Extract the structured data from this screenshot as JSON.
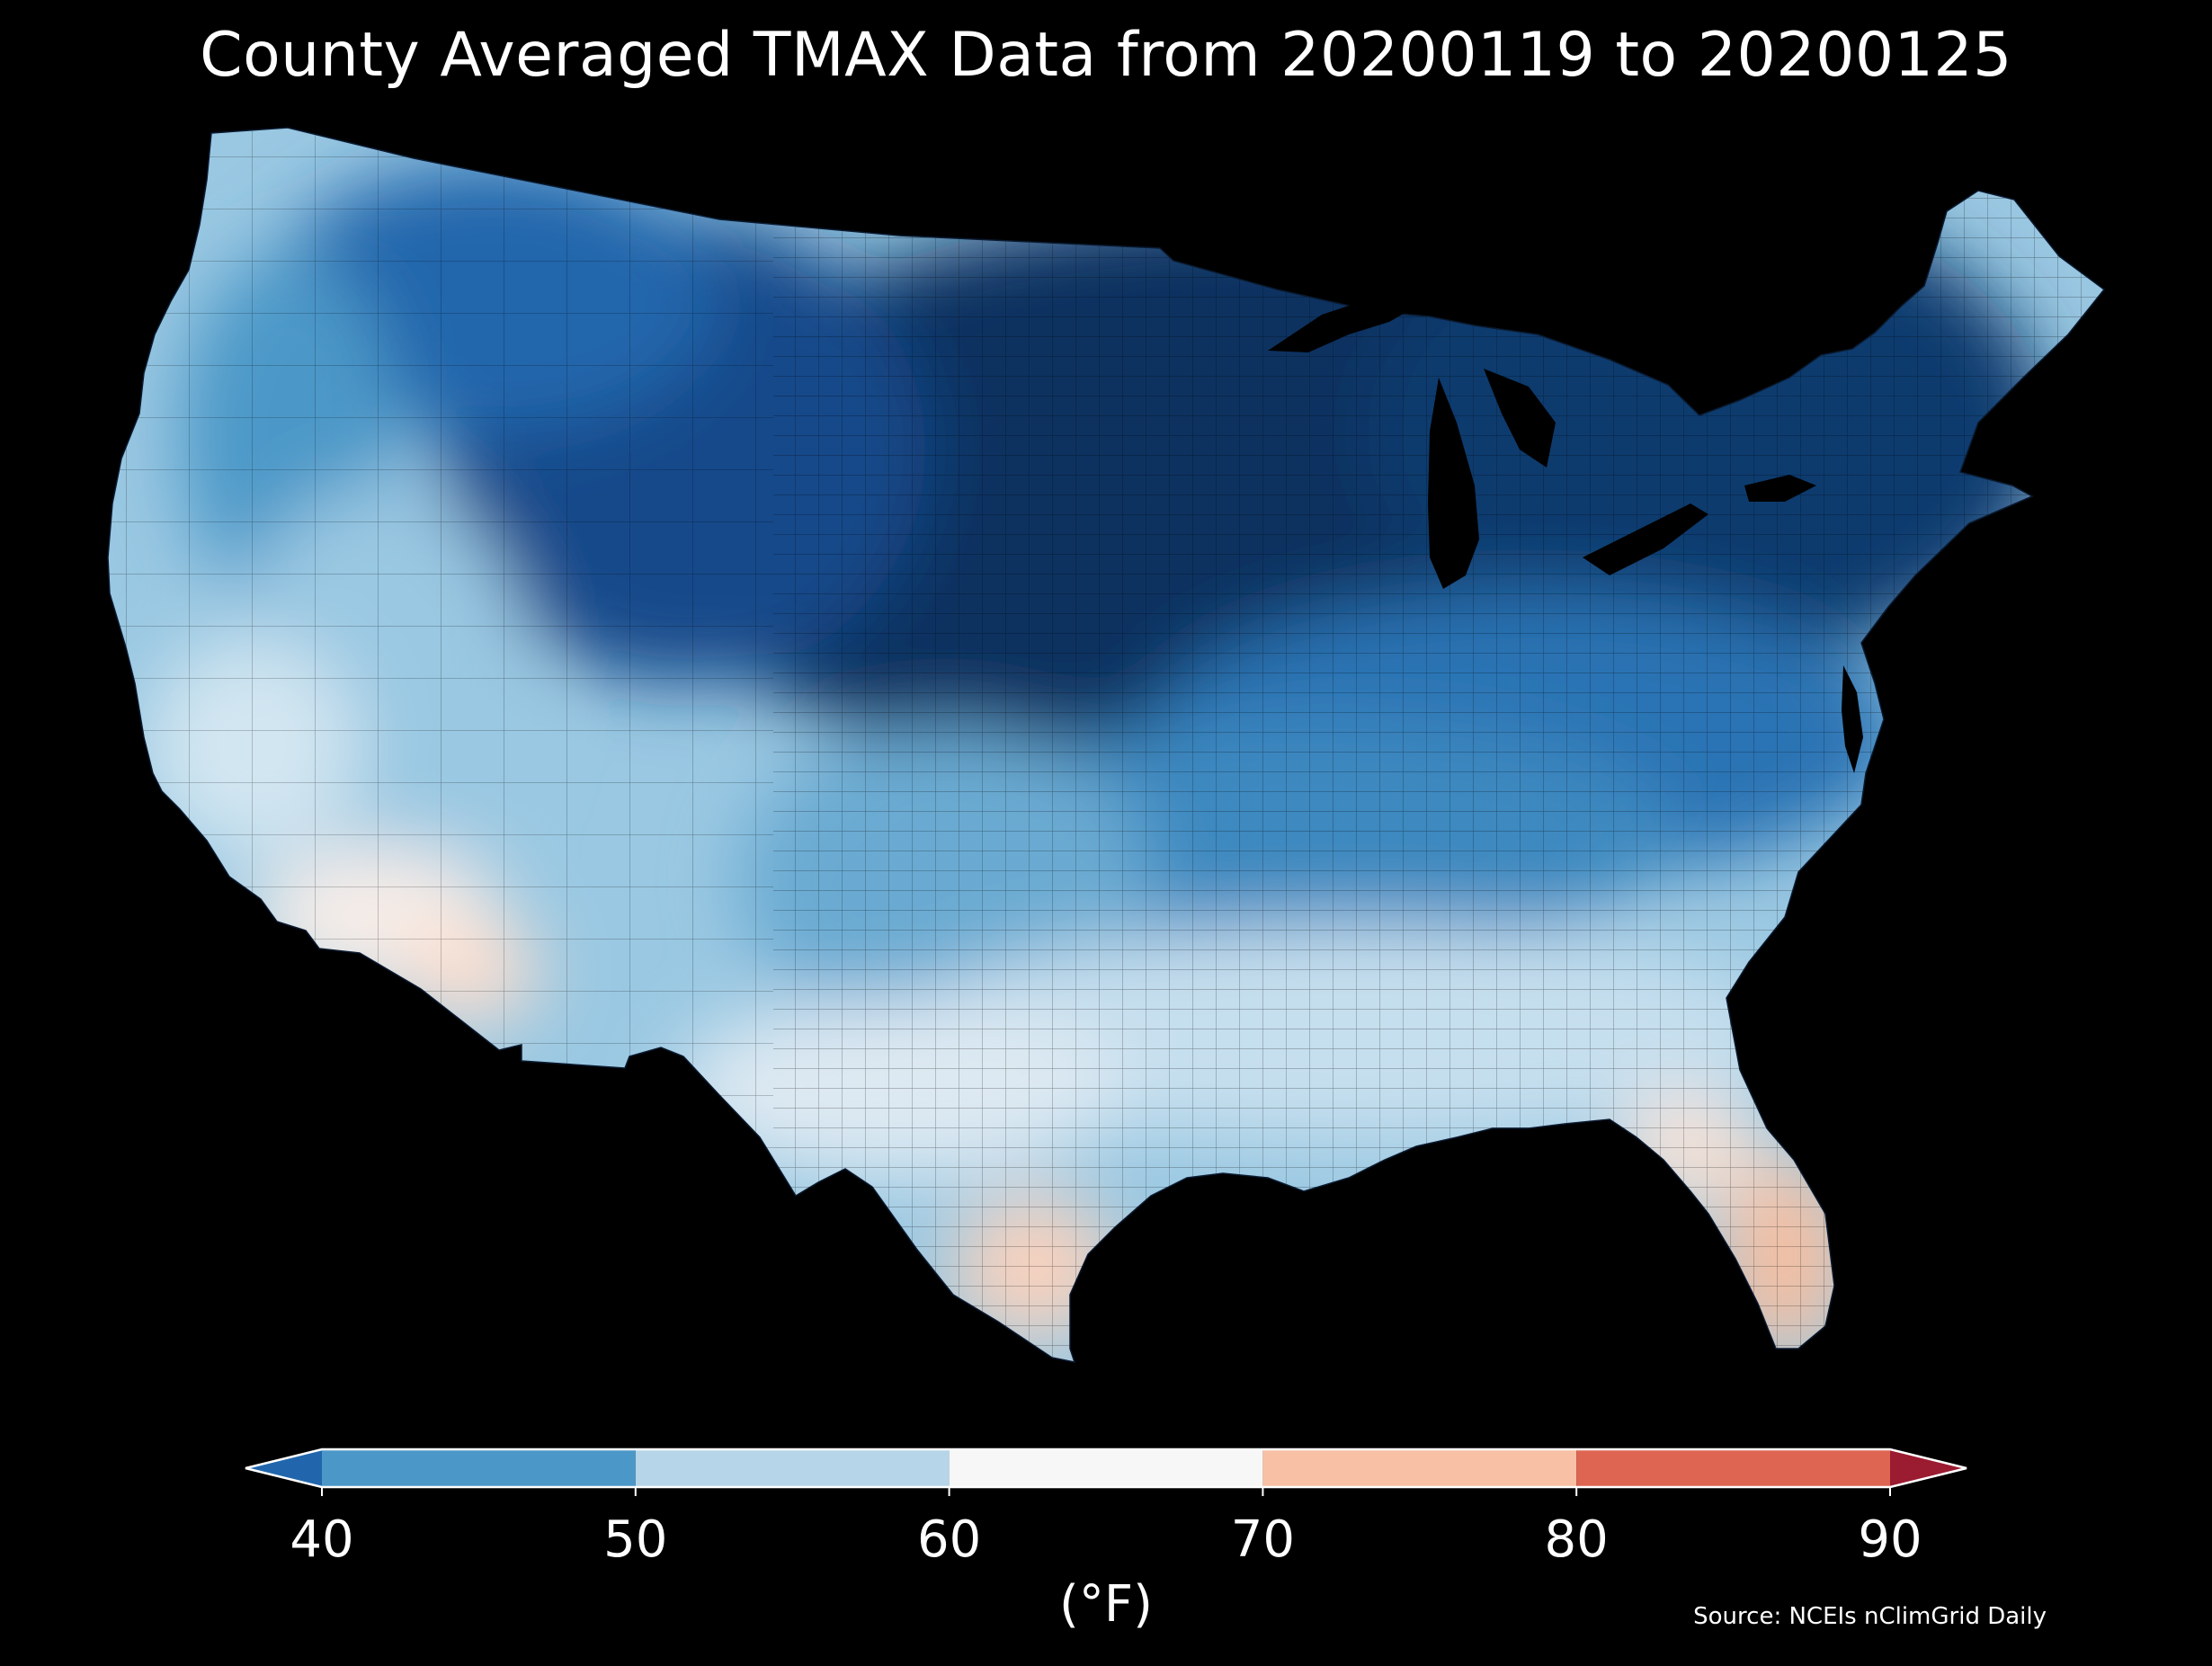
{
  "title": "County Averaged TMAX Data from 20200119 to 20200125",
  "colorbar": {
    "ticks": [
      "40",
      "50",
      "60",
      "70",
      "80",
      "90"
    ],
    "label": "(°F)",
    "min_color": "#2166ac",
    "max_color": "#9b1b30",
    "segments": [
      {
        "from": 40,
        "to": 50,
        "color": "#4b98c8"
      },
      {
        "from": 50,
        "to": 60,
        "color": "#b6d5e8"
      },
      {
        "from": 60,
        "to": 70,
        "color": "#f7f7f7"
      },
      {
        "from": 70,
        "to": 80,
        "color": "#f8c0a4"
      },
      {
        "from": 80,
        "to": 90,
        "color": "#de6552"
      }
    ]
  },
  "source": "Source: NCEIs nClimGrid Daily",
  "map_colors": {
    "background": "#000000",
    "cold_extreme": "#0a3060",
    "cold_dark": "#14488a",
    "cold": "#2166ac",
    "cool_mid": "#4b98c8",
    "cool_light": "#9ac8e2",
    "cool_pale": "#d2e6f1",
    "neutral": "#eef3f7",
    "warm_pale": "#fde2d4",
    "warm": "#f5bfa2"
  }
}
